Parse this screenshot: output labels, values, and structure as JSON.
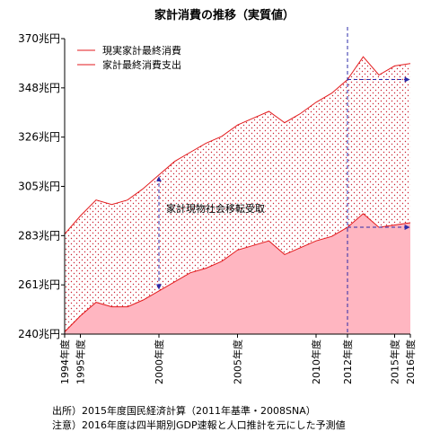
{
  "chart_data": {
    "type": "area",
    "title": "家計消費の推移（実質値）",
    "categories": [
      "1994年度",
      "1995年度",
      "1996年度",
      "1997年度",
      "1998年度",
      "1999年度",
      "2000年度",
      "2001年度",
      "2002年度",
      "2003年度",
      "2004年度",
      "2005年度",
      "2006年度",
      "2007年度",
      "2008年度",
      "2009年度",
      "2010年度",
      "2011年度",
      "2012年度",
      "2013年度",
      "2014年度",
      "2015年度",
      "2016年度"
    ],
    "x_tick_labels": [
      "1994年度",
      "1995年度",
      "2000年度",
      "2005年度",
      "2010年度",
      "2012年度",
      "2015年度",
      "2016年度"
    ],
    "y_tick_labels": [
      "240兆円",
      "261兆円",
      "283兆円",
      "305兆円",
      "326兆円",
      "348兆円",
      "370兆円"
    ],
    "ylim": [
      240,
      370
    ],
    "grid": false,
    "legend_position": "top-left",
    "series": [
      {
        "name": "現実家計最終消費",
        "color": "#e31a1c",
        "values": [
          284,
          292,
          299,
          297,
          299,
          304,
          310,
          316,
          320,
          324,
          327,
          332,
          335,
          338,
          333,
          337,
          342,
          346,
          352,
          362,
          354,
          358,
          359
        ]
      },
      {
        "name": "家計最終消費支出",
        "color": "#e31a1c",
        "fill": "#ffb6c1",
        "values": [
          241,
          248,
          254,
          252,
          252,
          255,
          259,
          263,
          267,
          269,
          272,
          277,
          279,
          281,
          275,
          278,
          281,
          283,
          287,
          293,
          287,
          288,
          289
        ]
      }
    ],
    "annotations": [
      {
        "text": "家計現物社会移転受取",
        "at": "2000年度"
      }
    ],
    "reference_line": {
      "x": "2012年度",
      "style": "dashed",
      "color": "#2b2ba8"
    }
  },
  "notes": [
    "出所）2015年度国民経済計算（2011年基準・2008SNA）",
    "注意）2016年度は四半期別GDP速報と人口推計を元にした予測値"
  ]
}
